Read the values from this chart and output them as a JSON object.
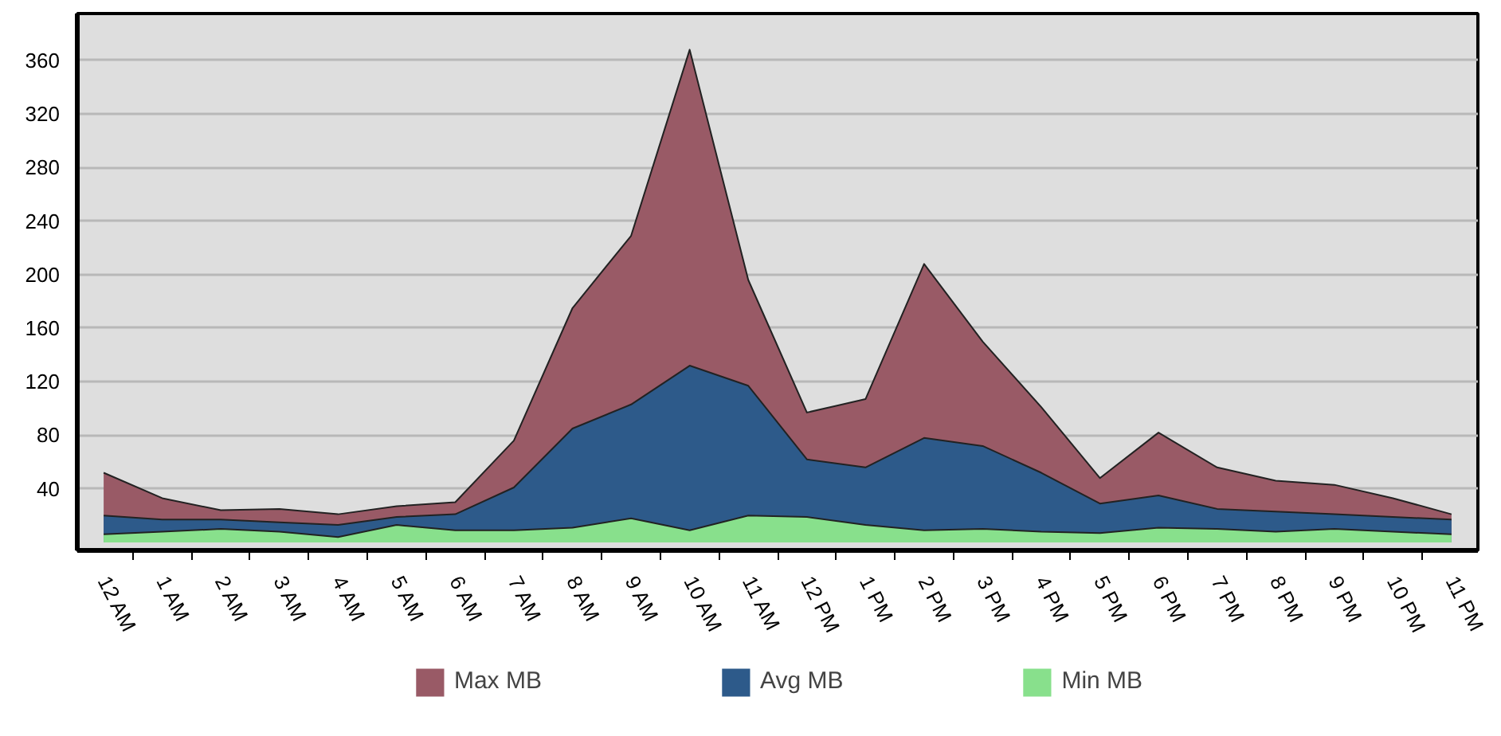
{
  "chart_data": {
    "type": "area",
    "categories": [
      "12 AM",
      "1 AM",
      "2 AM",
      "3 AM",
      "4 AM",
      "5 AM",
      "6 AM",
      "7 AM",
      "8 AM",
      "9 AM",
      "10 AM",
      "11 AM",
      "12 PM",
      "1 PM",
      "2 PM",
      "3 PM",
      "4 PM",
      "5 PM",
      "6 PM",
      "7 PM",
      "8 PM",
      "9 PM",
      "10 PM",
      "11 PM"
    ],
    "series": [
      {
        "name": "Max MB",
        "color": "#995a66",
        "values": [
          52,
          33,
          24,
          25,
          21,
          27,
          30,
          76,
          175,
          229,
          368,
          196,
          97,
          107,
          208,
          150,
          101,
          48,
          82,
          56,
          46,
          43,
          33,
          21
        ]
      },
      {
        "name": "Avg MB",
        "color": "#2d5a8a",
        "values": [
          20,
          17,
          17,
          15,
          13,
          19,
          21,
          41,
          85,
          103,
          132,
          117,
          62,
          56,
          78,
          72,
          52,
          29,
          35,
          25,
          23,
          21,
          19,
          17
        ]
      },
      {
        "name": "Min MB",
        "color": "#88e08c",
        "values": [
          6,
          8,
          10,
          8,
          4,
          13,
          9,
          9,
          11,
          18,
          9,
          20,
          19,
          13,
          9,
          10,
          8,
          7,
          11,
          10,
          8,
          10,
          8,
          6
        ]
      }
    ],
    "ylim": [
      -6,
      395
    ],
    "yticks": [
      40,
      80,
      120,
      160,
      200,
      240,
      280,
      320,
      360
    ],
    "grid": "y",
    "legend": "bottom"
  }
}
